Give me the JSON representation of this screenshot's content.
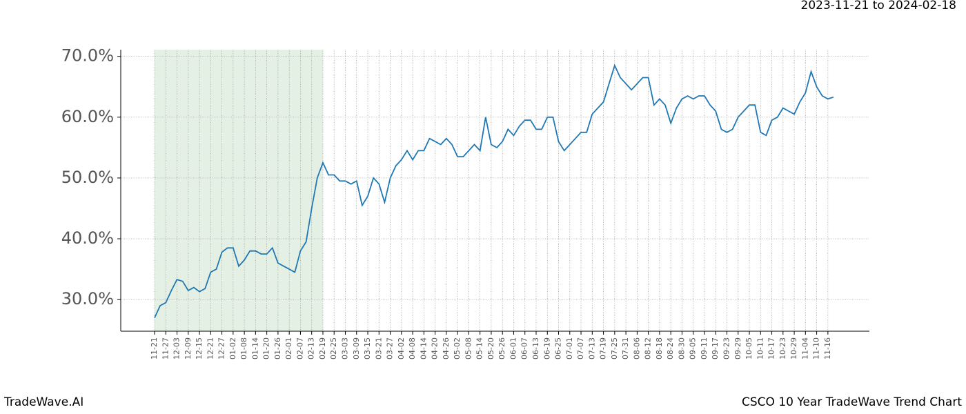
{
  "chart_data": {
    "type": "line",
    "date_range": "2023-11-21 to 2024-02-18",
    "brand": "TradeWave.AI",
    "title": "CSCO 10 Year TradeWave Trend Chart",
    "categories": [
      "11-21",
      null,
      "11-27",
      null,
      "12-03",
      null,
      "12-09",
      null,
      "12-15",
      null,
      "12-21",
      null,
      "12-27",
      null,
      "01-02",
      null,
      "01-08",
      null,
      "01-14",
      null,
      "01-20",
      null,
      "01-26",
      null,
      "02-01",
      null,
      "02-07",
      null,
      "02-13",
      null,
      "02-19",
      null,
      "02-25",
      null,
      "03-03",
      null,
      "03-09",
      null,
      "03-15",
      null,
      "03-21",
      null,
      "03-27",
      null,
      "04-02",
      null,
      "04-08",
      null,
      "04-14",
      null,
      "04-20",
      null,
      "04-26",
      null,
      "05-02",
      null,
      "05-08",
      null,
      "05-14",
      null,
      "05-20",
      null,
      "05-26",
      null,
      "06-01",
      null,
      "06-07",
      null,
      "06-13",
      null,
      "06-19",
      null,
      "06-25",
      null,
      "07-01",
      null,
      "07-07",
      null,
      "07-13",
      null,
      "07-19",
      null,
      "07-25",
      null,
      "07-31",
      null,
      "08-06",
      null,
      "08-12",
      null,
      "08-18",
      null,
      "08-24",
      null,
      "08-30",
      null,
      "09-05",
      null,
      "09-11",
      null,
      "09-17",
      null,
      "09-23",
      null,
      "09-29",
      null,
      "10-05",
      null,
      "10-11",
      null,
      "10-17",
      null,
      "10-23",
      null,
      "10-29",
      null,
      "11-04",
      null,
      "11-10",
      null,
      "11-16",
      null
    ],
    "series": [
      {
        "color": "#1f77b4",
        "values": [
          27.0,
          29.0,
          29.5,
          31.5,
          33.3,
          33.0,
          31.5,
          32.0,
          31.3,
          31.8,
          34.5,
          35.0,
          37.8,
          38.5,
          38.5,
          35.5,
          36.5,
          38.0,
          38.0,
          37.5,
          37.5,
          38.5,
          36.0,
          35.5,
          35.0,
          34.5,
          38.0,
          39.5,
          45.0,
          50.0,
          52.5,
          50.5,
          50.5,
          49.5,
          49.5,
          49.0,
          49.5,
          45.5,
          47.0,
          50.0,
          49.0,
          46.0,
          50.0,
          52.0,
          53.0,
          54.5,
          53.0,
          54.5,
          54.5,
          56.5,
          56.0,
          55.5,
          56.5,
          55.5,
          53.5,
          53.5,
          54.5,
          55.5,
          54.5,
          60.0,
          55.5,
          55.0,
          56.0,
          58.0,
          57.0,
          58.5,
          59.5,
          59.5,
          58.0,
          58.0,
          60.0,
          60.0,
          56.0,
          54.5,
          55.5,
          56.5,
          57.5,
          57.5,
          60.5,
          61.5,
          62.5,
          65.5,
          68.5,
          66.5,
          65.5,
          64.5,
          65.5,
          66.5,
          66.5,
          62.0,
          63.0,
          62.0,
          59.0,
          61.5,
          63.0,
          63.5,
          63.0,
          63.5,
          63.5,
          62.0,
          61.0,
          58.0,
          57.5,
          58.0,
          60.0,
          61.0,
          62.0,
          62.0,
          57.5,
          57.0,
          59.5,
          60.0,
          61.5,
          61.0,
          60.5,
          62.5,
          64.0,
          67.5,
          65.0,
          63.5,
          63.0,
          63.3
        ]
      }
    ],
    "shade_range": [
      "11-21",
      "02-19"
    ],
    "shade_color": "#e5f0e5",
    "ylim": [
      24.8,
      71.1
    ],
    "yticks": [
      {
        "value": 30,
        "label": "30.0%"
      },
      {
        "value": 40,
        "label": "40.0%"
      },
      {
        "value": 50,
        "label": "50.0%"
      },
      {
        "value": 60,
        "label": "60.0%"
      },
      {
        "value": 70,
        "label": "70.0%"
      }
    ],
    "grid": true
  }
}
